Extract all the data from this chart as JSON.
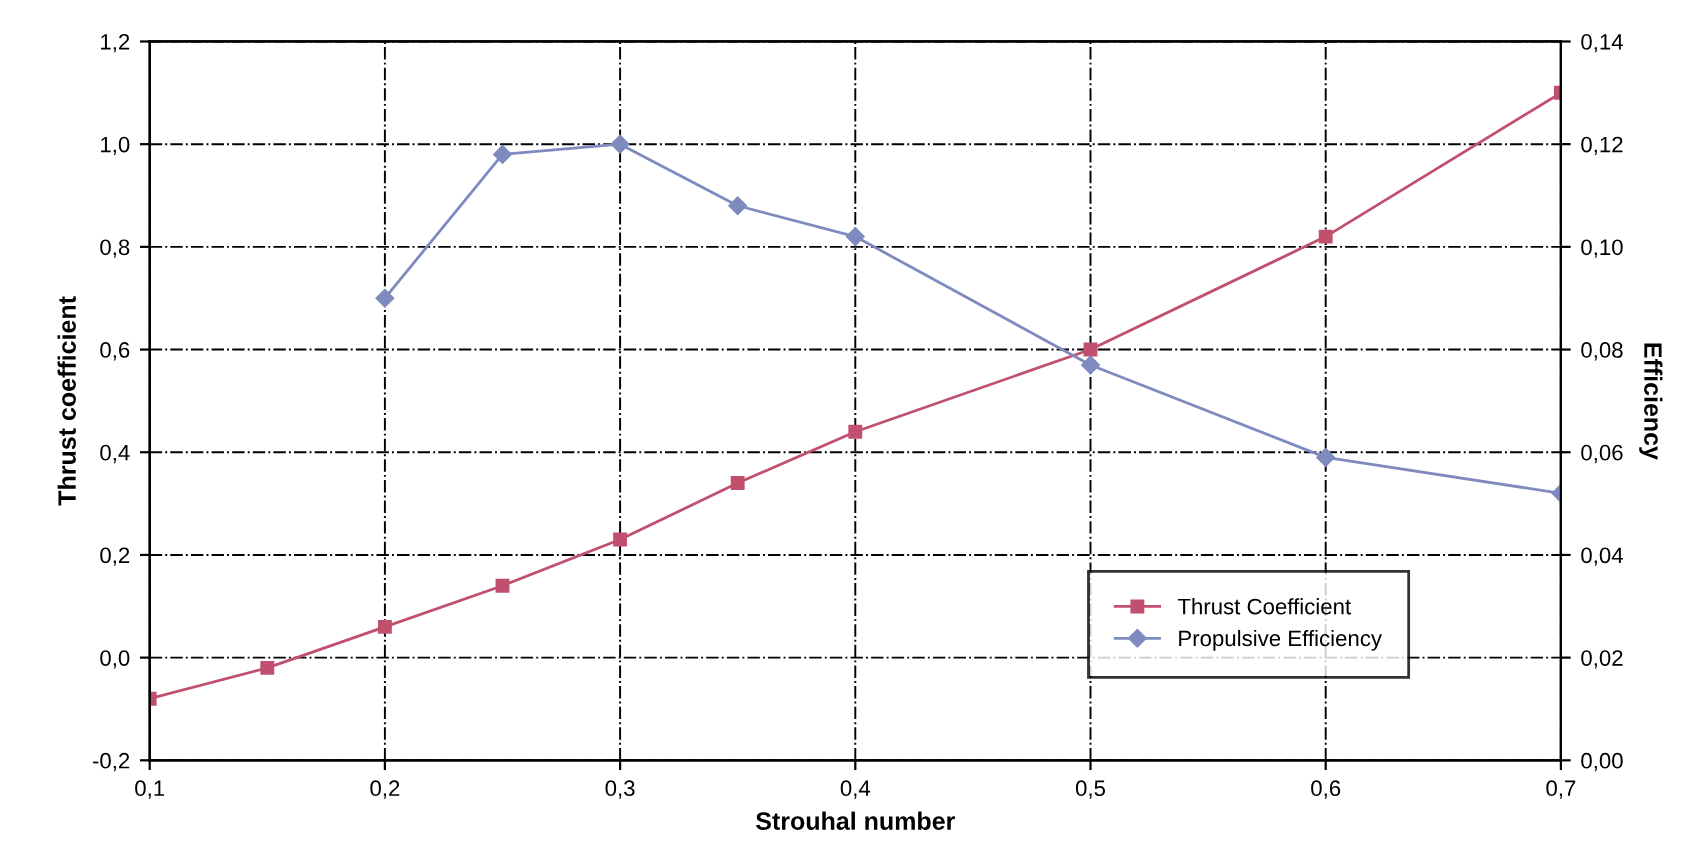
{
  "chart_data": {
    "type": "line",
    "xlabel": "Strouhal number",
    "ylabel": "Thrust coefficient",
    "y2label": "Efficiency",
    "xlim": [
      0.1,
      0.7
    ],
    "xticks": [
      {
        "value": 0.1,
        "label": "0,1"
      },
      {
        "value": 0.2,
        "label": "0,2"
      },
      {
        "value": 0.3,
        "label": "0,3"
      },
      {
        "value": 0.4,
        "label": "0,4"
      },
      {
        "value": 0.5,
        "label": "0,5"
      },
      {
        "value": 0.6,
        "label": "0,6"
      },
      {
        "value": 0.7,
        "label": "0,7"
      }
    ],
    "ylim": [
      -0.2,
      1.2
    ],
    "yticks": [
      {
        "value": -0.2,
        "label": "-0,2"
      },
      {
        "value": 0,
        "label": "0,0"
      },
      {
        "value": 0.2,
        "label": "0,2"
      },
      {
        "value": 0.4,
        "label": "0,4"
      },
      {
        "value": 0.6,
        "label": "0,6"
      },
      {
        "value": 0.8,
        "label": "0,8"
      },
      {
        "value": 1.0,
        "label": "1,0"
      },
      {
        "value": 1.2,
        "label": "1,2"
      }
    ],
    "y2lim": [
      0,
      0.14
    ],
    "y2ticks": [
      {
        "value": 0,
        "label": "0,00"
      },
      {
        "value": 0.02,
        "label": "0,02"
      },
      {
        "value": 0.04,
        "label": "0,04"
      },
      {
        "value": 0.06,
        "label": "0,06"
      },
      {
        "value": 0.08,
        "label": "0,08"
      },
      {
        "value": 0.1,
        "label": "0,10"
      },
      {
        "value": 0.12,
        "label": "0,12"
      },
      {
        "value": 0.14,
        "label": "0,14"
      }
    ],
    "grid": true,
    "legend": "bottom right",
    "line_style": "solid",
    "series": [
      {
        "name": "Thrust Coefficient",
        "color": "#c0506e",
        "marker": "square",
        "x": [
          0.1,
          0.15,
          0.2,
          0.25,
          0.3,
          0.35,
          0.4,
          0.5,
          0.6,
          0.7
        ],
        "values": [
          -0.08,
          -0.02,
          0.06,
          0.14,
          0.23,
          0.34,
          0.44,
          0.6,
          0.82,
          1.1
        ]
      },
      {
        "name": "Propulsive Efficiency",
        "color": "#7f8bbf",
        "marker": "diamond",
        "axis": "y2",
        "x": [
          0.2,
          0.25,
          0.3,
          0.35,
          0.4,
          0.5,
          0.6,
          0.7
        ],
        "values": [
          0.09,
          0.118,
          0.12,
          0.108,
          0.102,
          0.077,
          0.059,
          0.052
        ]
      }
    ]
  }
}
